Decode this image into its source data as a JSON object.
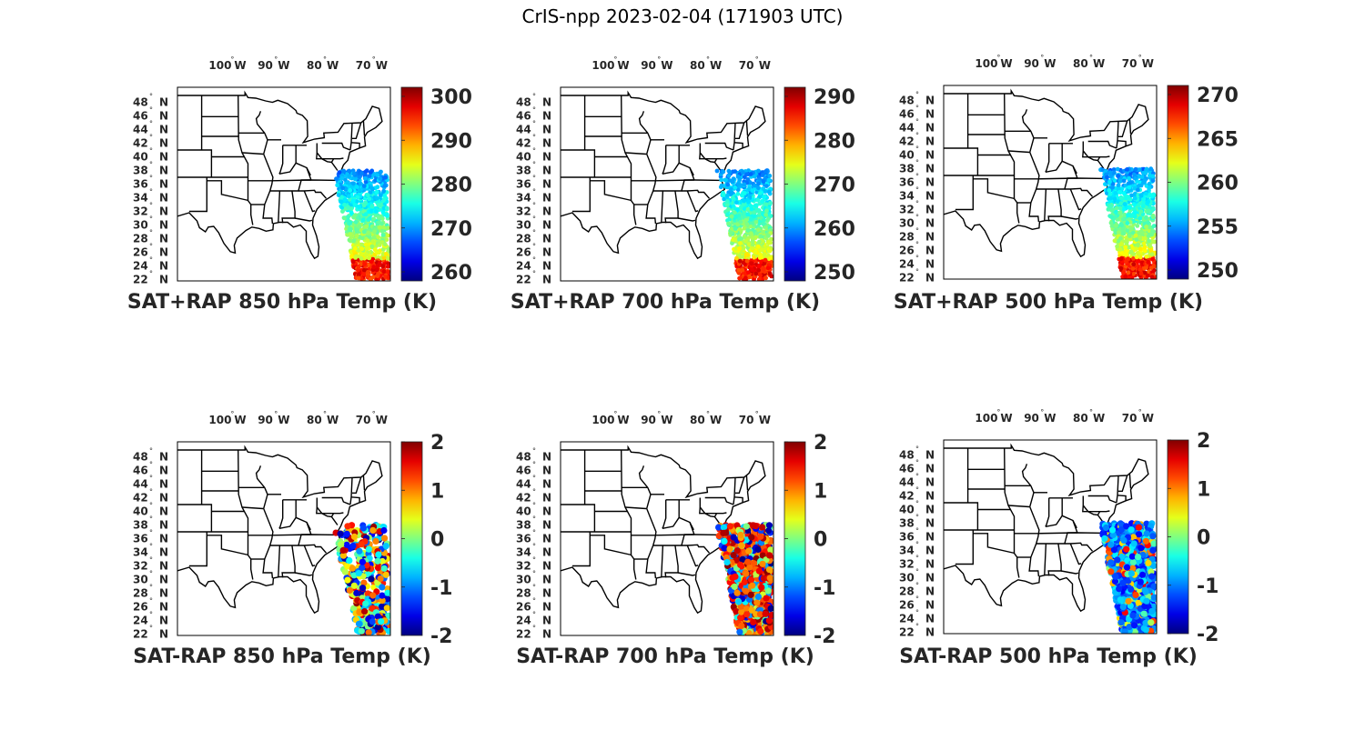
{
  "figure": {
    "title": "CrIS-npp 2023-02-04 (171903 UTC)"
  },
  "map_axes": {
    "lon_ticks": [
      {
        "value": -100,
        "label": "100° W"
      },
      {
        "value": -90,
        "label": "90° W"
      },
      {
        "value": -80,
        "label": "80° W"
      },
      {
        "value": -70,
        "label": "70° W"
      }
    ],
    "lat_ticks": [
      {
        "value": 48,
        "label": "48° N"
      },
      {
        "value": 46,
        "label": "46° N"
      },
      {
        "value": 44,
        "label": "44° N"
      },
      {
        "value": 42,
        "label": "42° N"
      },
      {
        "value": 40,
        "label": "40° N"
      },
      {
        "value": 38,
        "label": "38° N"
      },
      {
        "value": 36,
        "label": "36° N"
      },
      {
        "value": 34,
        "label": "34° N"
      },
      {
        "value": 32,
        "label": "32° N"
      },
      {
        "value": 30,
        "label": "30° N"
      },
      {
        "value": 28,
        "label": "28° N"
      },
      {
        "value": 26,
        "label": "26° N"
      },
      {
        "value": 24,
        "label": "24° N"
      },
      {
        "value": 22,
        "label": "22° N"
      }
    ]
  },
  "chart_data": [
    {
      "type": "scatter",
      "title": "SAT+RAP 850 hPa Temp (K)",
      "colorbar": {
        "ticks": [
          300,
          290,
          280,
          270,
          260
        ],
        "colormap": "jet"
      },
      "swath": "top-850"
    },
    {
      "type": "scatter",
      "title": "SAT+RAP 700 hPa Temp (K)",
      "colorbar": {
        "ticks": [
          290,
          280,
          270,
          260,
          250
        ],
        "colormap": "jet"
      },
      "swath": "top-700"
    },
    {
      "type": "scatter",
      "title": "SAT+RAP 500 hPa Temp (K)",
      "colorbar": {
        "ticks": [
          270,
          265,
          260,
          255,
          250
        ],
        "colormap": "jet"
      },
      "swath": "top-500"
    },
    {
      "type": "scatter",
      "title": "SAT-RAP 850 hPa Temp (K)",
      "colorbar": {
        "ticks": [
          2,
          1,
          0,
          -1,
          -2
        ],
        "colormap": "jet"
      },
      "swath": "diff-850"
    },
    {
      "type": "scatter",
      "title": "SAT-RAP 700 hPa Temp (K)",
      "colorbar": {
        "ticks": [
          2,
          1,
          0,
          -1,
          -2
        ],
        "colormap": "jet"
      },
      "swath": "diff-700"
    },
    {
      "type": "scatter",
      "title": "SAT-RAP 500 hPa Temp (K)",
      "colorbar": {
        "ticks": [
          2,
          1,
          0,
          -1,
          -2
        ],
        "colormap": "jet"
      },
      "swath": "diff-500"
    }
  ]
}
